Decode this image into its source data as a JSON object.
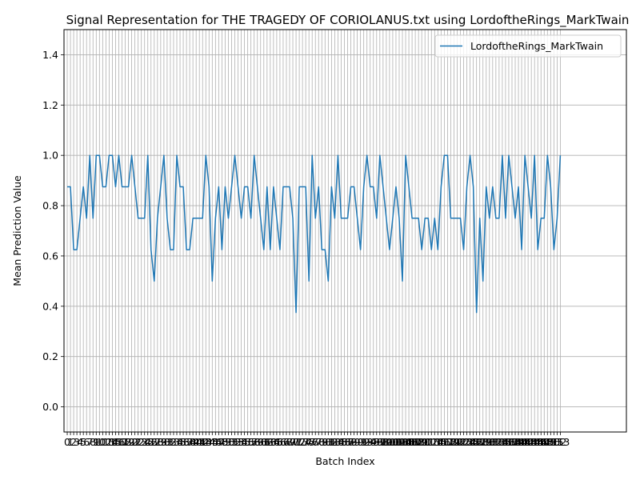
{
  "chart_data": {
    "type": "line",
    "title": "Signal Representation for THE TRAGEDY OF CORIOLANUS.txt using LordoftheRings_MarkTwain",
    "xlabel": "Batch Index",
    "ylabel": "Mean Prediction Value",
    "xlim": [
      -1.0,
      173.5
    ],
    "ylim": [
      -0.1,
      1.5
    ],
    "yticks": [
      0.0,
      0.2,
      0.4,
      0.6,
      0.8,
      1.0,
      1.2,
      1.4
    ],
    "grid": true,
    "legend_position": "top-right",
    "series": [
      {
        "name": "LordoftheRings_MarkTwain",
        "color": "#1f77b4",
        "values": [
          0.875,
          0.875,
          0.625,
          0.625,
          0.75,
          0.875,
          0.75,
          1.0,
          0.75,
          1.0,
          1.0,
          0.875,
          0.875,
          1.0,
          1.0,
          0.875,
          1.0,
          0.875,
          0.875,
          0.875,
          1.0,
          0.875,
          0.75,
          0.75,
          0.75,
          1.0,
          0.625,
          0.5,
          0.75,
          0.875,
          1.0,
          0.75,
          0.625,
          0.625,
          1.0,
          0.875,
          0.875,
          0.625,
          0.625,
          0.75,
          0.75,
          0.75,
          0.75,
          1.0,
          0.875,
          0.5,
          0.75,
          0.875,
          0.625,
          0.875,
          0.75,
          0.875,
          1.0,
          0.875,
          0.75,
          0.875,
          0.875,
          0.75,
          1.0,
          0.875,
          0.75,
          0.625,
          0.875,
          0.625,
          0.875,
          0.75,
          0.625,
          0.875,
          0.875,
          0.875,
          0.75,
          0.375,
          0.875,
          0.875,
          0.875,
          0.5,
          1.0,
          0.75,
          0.875,
          0.625,
          0.625,
          0.5,
          0.875,
          0.75,
          1.0,
          0.75,
          0.75,
          0.75,
          0.875,
          0.875,
          0.75,
          0.625,
          0.875,
          1.0,
          0.875,
          0.875,
          0.75,
          1.0,
          0.875,
          0.75,
          0.625,
          0.75,
          0.875,
          0.75,
          0.5,
          1.0,
          0.875,
          0.75,
          0.75,
          0.75,
          0.625,
          0.75,
          0.75,
          0.625,
          0.75,
          0.625,
          0.875,
          1.0,
          1.0,
          0.75,
          0.75,
          0.75,
          0.75,
          0.625,
          0.875,
          1.0,
          0.875,
          0.375,
          0.75,
          0.5,
          0.875,
          0.75,
          0.875,
          0.75,
          0.75,
          1.0,
          0.75,
          1.0,
          0.875,
          0.75,
          0.875,
          0.625,
          1.0,
          0.875,
          0.75,
          1.0,
          0.625,
          0.75,
          0.75,
          1.0,
          0.875,
          0.625,
          0.75,
          1.0
        ]
      }
    ]
  }
}
